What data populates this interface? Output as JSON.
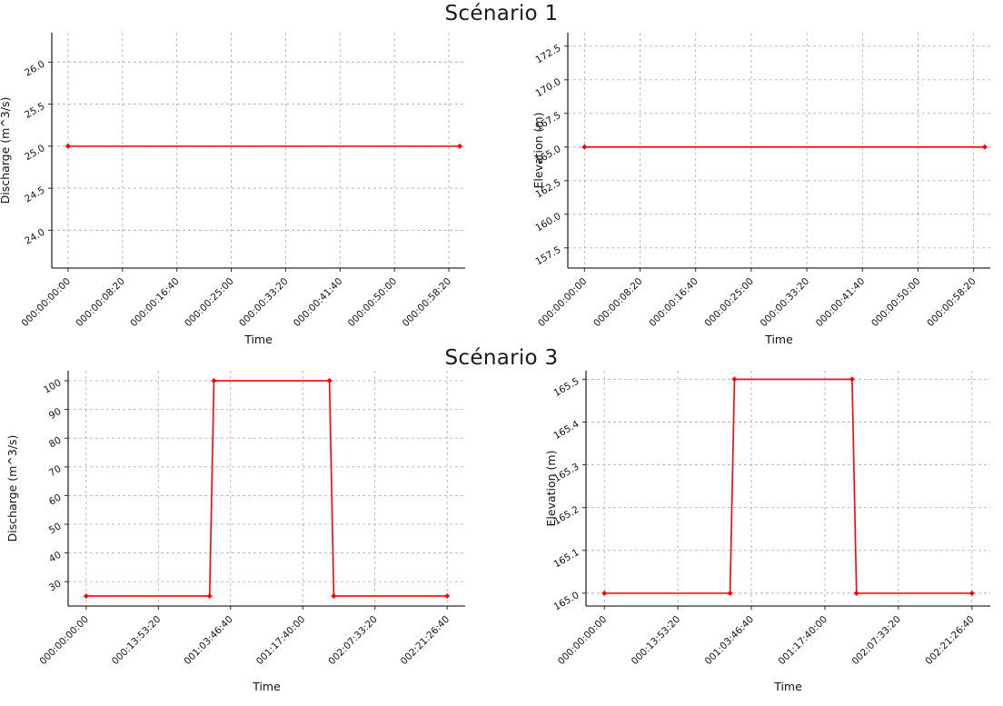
{
  "titles": {
    "scenario1": "Scénario 1",
    "scenario3": "Scénario 3"
  },
  "chart_data": [
    {
      "id": "scenario1-discharge",
      "type": "line",
      "title": "Scénario 1",
      "xlabel": "Time",
      "ylabel": "Discharge (m^3/s)",
      "line_color": "#ff0000",
      "grid": true,
      "legend": "none",
      "xlim": [
        -150,
        3650
      ],
      "ylim": [
        23.55,
        26.35
      ],
      "x_tick_values": [
        0,
        500,
        1000,
        1500,
        2000,
        2500,
        3000,
        3500
      ],
      "x_tick_labels": [
        "000:00:00:00",
        "000:00:08:20",
        "000:00:16:40",
        "000:00:25:00",
        "000:00:33:20",
        "000:00:41:40",
        "000:00:50:00",
        "000:00:58:20"
      ],
      "y_tick_values": [
        24.0,
        24.5,
        25.0,
        25.5,
        26.0
      ],
      "y_tick_labels": [
        "24.0",
        "24.5",
        "25.0",
        "25.5",
        "26.0"
      ],
      "series": [
        {
          "name": "discharge",
          "points": [
            [
              0,
              25.0
            ],
            [
              3600,
              25.0
            ]
          ]
        }
      ]
    },
    {
      "id": "scenario1-elevation",
      "type": "line",
      "title": "Scénario 1",
      "xlabel": "Time",
      "ylabel": "Elevation (m)",
      "line_color": "#ff0000",
      "grid": true,
      "legend": "none",
      "xlim": [
        -150,
        3650
      ],
      "ylim": [
        156.0,
        173.5
      ],
      "x_tick_values": [
        0,
        500,
        1000,
        1500,
        2000,
        2500,
        3000,
        3500
      ],
      "x_tick_labels": [
        "000:00:00:00",
        "000:00:08:20",
        "000:00:16:40",
        "000:00:25:00",
        "000:00:33:20",
        "000:00:41:40",
        "000:00:50:00",
        "000:00:58:20"
      ],
      "y_tick_values": [
        157.5,
        160.0,
        162.5,
        165.0,
        167.5,
        170.0,
        172.5
      ],
      "y_tick_labels": [
        "157.5",
        "160.0",
        "162.5",
        "165.0",
        "167.5",
        "170.0",
        "172.5"
      ],
      "series": [
        {
          "name": "elevation",
          "points": [
            [
              0,
              165.0
            ],
            [
              3600,
              165.0
            ]
          ]
        }
      ]
    },
    {
      "id": "scenario3-discharge",
      "type": "line",
      "title": "Scénario 3",
      "xlabel": "Time",
      "ylabel": "Discharge (m^3/s)",
      "line_color": "#ff0000",
      "grid": true,
      "legend": "none",
      "xlim": [
        -12500,
        262500
      ],
      "ylim": [
        21.5,
        103.5
      ],
      "x_tick_values": [
        0,
        50000,
        100000,
        150000,
        200000,
        250000
      ],
      "x_tick_labels": [
        "000:00:00:00",
        "000:13:53:20",
        "001:03:46:40",
        "001:17:40:00",
        "002:07:33:20",
        "002:21:26:40"
      ],
      "y_tick_values": [
        30,
        40,
        50,
        60,
        70,
        80,
        90,
        100
      ],
      "y_tick_labels": [
        "30",
        "40",
        "50",
        "60",
        "70",
        "80",
        "90",
        "100"
      ],
      "series": [
        {
          "name": "discharge",
          "points": [
            [
              0,
              25.0
            ],
            [
              85500,
              25.0
            ],
            [
              88500,
              100.0
            ],
            [
              168500,
              100.0
            ],
            [
              171500,
              25.0
            ],
            [
              250000,
              25.0
            ]
          ]
        }
      ]
    },
    {
      "id": "scenario3-elevation",
      "type": "line",
      "title": "Scénario 3",
      "xlabel": "Time",
      "ylabel": "Elevation (m)",
      "line_color": "#ff0000",
      "grid": true,
      "legend": "none",
      "xlim": [
        -12500,
        262500
      ],
      "ylim": [
        164.97,
        165.52
      ],
      "x_tick_values": [
        0,
        50000,
        100000,
        150000,
        200000,
        250000
      ],
      "x_tick_labels": [
        "000:00:00:00",
        "000:13:53:20",
        "001:03:46:40",
        "001:17:40:00",
        "002:07:33:20",
        "002:21:26:40"
      ],
      "y_tick_values": [
        165.0,
        165.1,
        165.2,
        165.3,
        165.4,
        165.5
      ],
      "y_tick_labels": [
        "165.0",
        "165.1",
        "165.2",
        "165.3",
        "165.4",
        "165.5"
      ],
      "series": [
        {
          "name": "elevation",
          "points": [
            [
              0,
              165.0
            ],
            [
              85500,
              165.0
            ],
            [
              88500,
              165.5
            ],
            [
              168500,
              165.5
            ],
            [
              171500,
              165.0
            ],
            [
              250000,
              165.0
            ]
          ]
        }
      ]
    }
  ]
}
